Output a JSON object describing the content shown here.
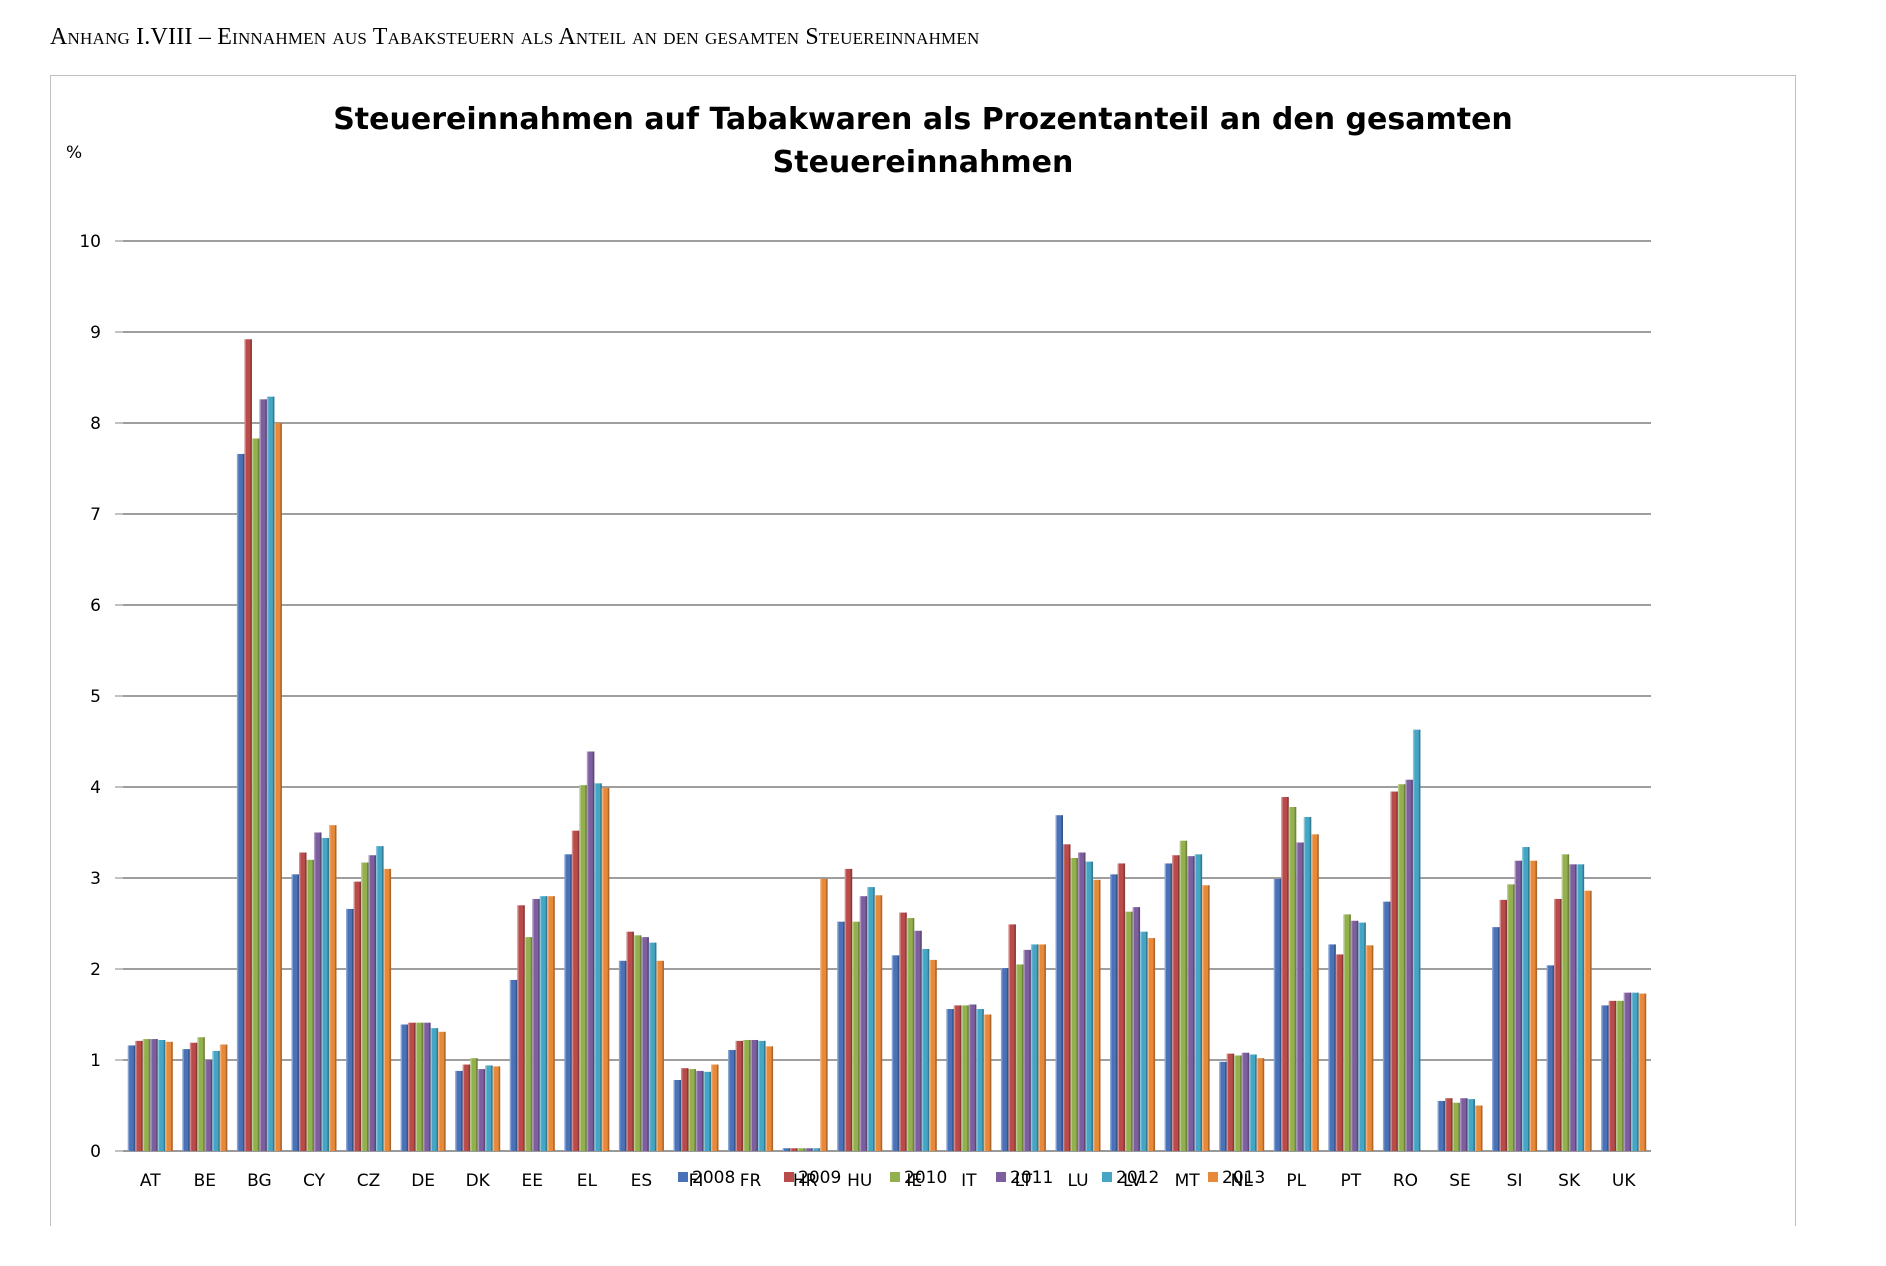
{
  "document": {
    "heading": "Anhang I.VIII – Einnahmen aus Tabaksteuern als Anteil an den gesamten Steuereinnahmen"
  },
  "chart_data": {
    "type": "bar",
    "title_lines": [
      "Steuereinnahmen auf Tabakwaren als Prozentanteil an den gesamten",
      "Steuereinnahmen"
    ],
    "ylabel": "%",
    "ylim": [
      0,
      10
    ],
    "yticks": [
      0,
      1,
      2,
      3,
      4,
      5,
      6,
      7,
      8,
      9,
      10
    ],
    "grid": true,
    "legend_position": "bottom (overlapping category labels)",
    "categories": [
      "AT",
      "BE",
      "BG",
      "CY",
      "CZ",
      "DE",
      "DK",
      "EE",
      "EL",
      "ES",
      "FI",
      "FR",
      "HR",
      "HU",
      "IE",
      "IT",
      "LT",
      "LU",
      "LV",
      "MT",
      "NL",
      "PL",
      "PT",
      "RO",
      "SE",
      "SI",
      "SK",
      "UK"
    ],
    "series": [
      {
        "name": "2008",
        "color": "#4a72b8",
        "values": [
          1.16,
          1.12,
          7.66,
          3.04,
          2.66,
          1.39,
          0.88,
          1.88,
          3.26,
          2.09,
          0.78,
          1.11,
          0.03,
          2.52,
          2.15,
          1.56,
          2.01,
          3.69,
          3.04,
          3.16,
          0.98,
          2.99,
          2.27,
          2.74,
          0.55,
          2.46,
          2.04,
          1.6
        ]
      },
      {
        "name": "2009",
        "color": "#b94b4b",
        "values": [
          1.21,
          1.19,
          8.92,
          3.28,
          2.96,
          1.41,
          0.95,
          2.7,
          3.52,
          2.41,
          0.91,
          1.21,
          0.03,
          3.1,
          2.62,
          1.6,
          2.49,
          3.37,
          3.16,
          3.25,
          1.07,
          3.89,
          2.16,
          3.95,
          0.58,
          2.76,
          2.77,
          1.65
        ]
      },
      {
        "name": "2010",
        "color": "#93b04e",
        "values": [
          1.23,
          1.25,
          7.83,
          3.2,
          3.17,
          1.41,
          1.02,
          2.35,
          4.02,
          2.37,
          0.9,
          1.22,
          0.03,
          2.52,
          2.56,
          1.6,
          2.05,
          3.22,
          2.63,
          3.41,
          1.05,
          3.78,
          2.6,
          4.03,
          0.53,
          2.93,
          3.26,
          1.65
        ]
      },
      {
        "name": "2011",
        "color": "#7d5f9f",
        "values": [
          1.23,
          1.0,
          8.26,
          3.5,
          3.25,
          1.41,
          0.9,
          2.77,
          4.39,
          2.35,
          0.88,
          1.22,
          0.03,
          2.8,
          2.42,
          1.61,
          2.21,
          3.28,
          2.68,
          3.24,
          1.08,
          3.39,
          2.53,
          4.08,
          0.58,
          3.19,
          3.15,
          1.74
        ]
      },
      {
        "name": "2012",
        "color": "#45a5c4",
        "values": [
          1.22,
          1.1,
          8.29,
          3.44,
          3.35,
          1.35,
          0.94,
          2.8,
          4.04,
          2.29,
          0.87,
          1.21,
          0.03,
          2.9,
          2.22,
          1.56,
          2.27,
          3.18,
          2.41,
          3.26,
          1.06,
          3.67,
          2.51,
          4.63,
          0.57,
          3.34,
          3.15,
          1.74
        ]
      },
      {
        "name": "2013",
        "color": "#e8893a",
        "values": [
          1.2,
          1.17,
          8.0,
          3.58,
          3.1,
          1.31,
          0.93,
          2.8,
          3.99,
          2.09,
          0.95,
          1.15,
          2.99,
          2.81,
          2.1,
          1.5,
          2.27,
          2.98,
          2.34,
          2.92,
          1.02,
          3.48,
          2.26,
          null,
          0.5,
          3.19,
          2.86,
          1.73
        ]
      }
    ]
  }
}
